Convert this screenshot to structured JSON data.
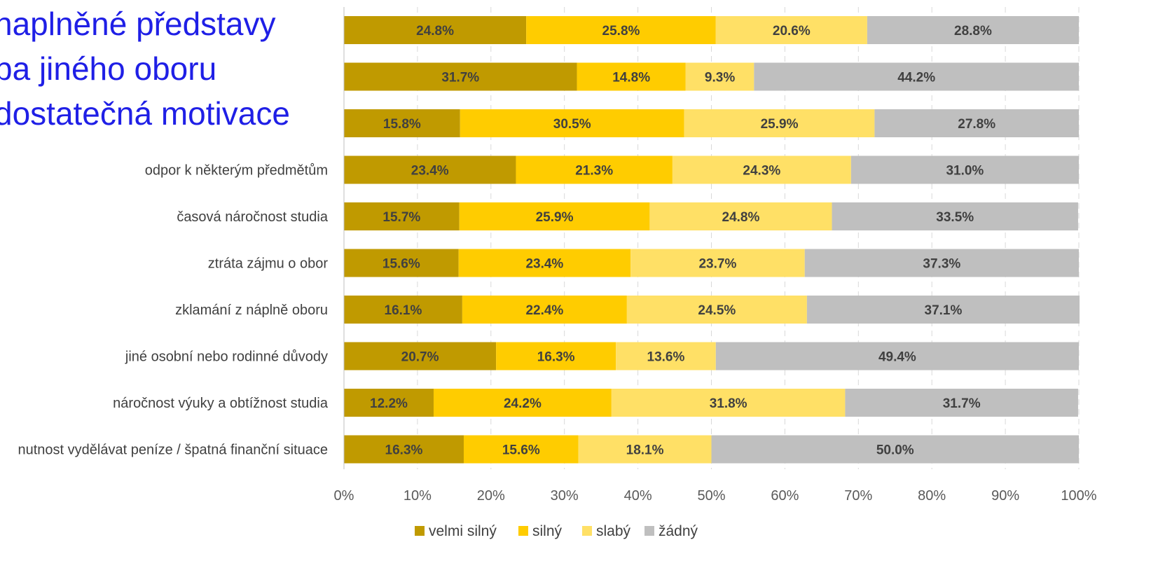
{
  "chart_data": {
    "type": "bar",
    "orientation": "horizontal",
    "stacked": "percent",
    "title_lines": [
      "naplněné představy",
      "ba jiného oboru",
      "dostatečná motivace"
    ],
    "categories": [
      "",
      "",
      "",
      "odpor k některým předmětům",
      "časová náročnost studia",
      "ztráta zájmu o obor",
      "zklamání z náplně oboru",
      "jiné osobní nebo rodinné důvody",
      "náročnost výuky a obtížnost studia",
      "nutnost vydělávat peníze / špatná finanční situace"
    ],
    "series": [
      {
        "name": "velmi silný",
        "color": "#c09a00",
        "values": [
          24.8,
          31.7,
          15.8,
          23.4,
          15.7,
          15.6,
          16.1,
          20.7,
          12.2,
          16.3
        ]
      },
      {
        "name": "silný",
        "color": "#ffcc00",
        "values": [
          25.8,
          14.8,
          30.5,
          21.3,
          25.9,
          23.4,
          22.4,
          16.3,
          24.2,
          15.6
        ]
      },
      {
        "name": "slabý",
        "color": "#ffe066",
        "values": [
          20.6,
          9.3,
          25.9,
          24.3,
          24.8,
          23.7,
          24.5,
          13.6,
          31.8,
          18.1
        ]
      },
      {
        "name": "žádný",
        "color": "#bfbfbf",
        "values": [
          28.8,
          44.2,
          27.8,
          31.0,
          33.5,
          37.3,
          37.1,
          49.4,
          31.7,
          50.0
        ]
      }
    ],
    "value_format_suffix": "%",
    "xlim": [
      0,
      100
    ],
    "x_ticks": [
      0,
      10,
      20,
      30,
      40,
      50,
      60,
      70,
      80,
      90,
      100
    ],
    "x_tick_suffix": "%",
    "grid": "vertical dashed",
    "legend_position": "bottom-center"
  }
}
